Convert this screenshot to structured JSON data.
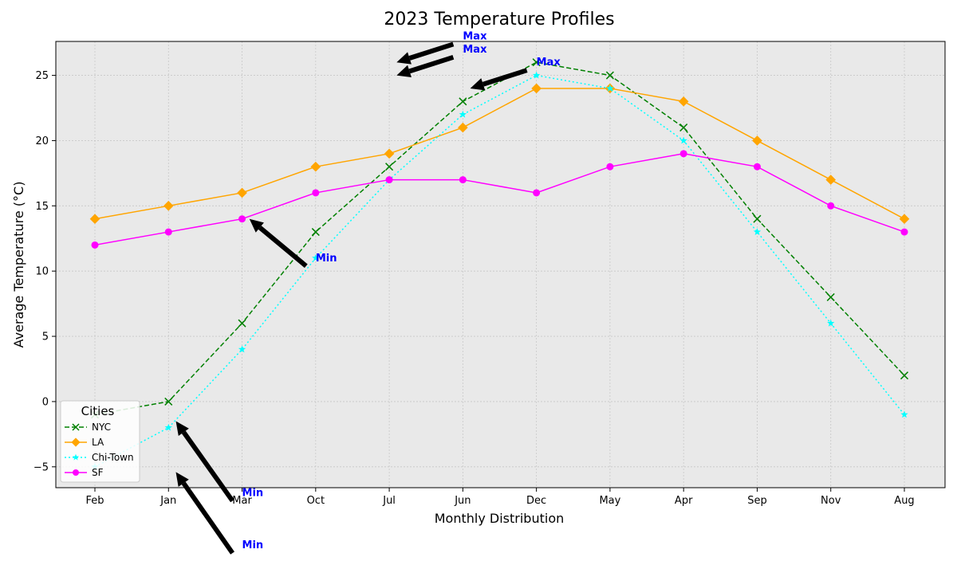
{
  "chart_data": {
    "type": "line",
    "title": "2023 Temperature Profiles",
    "xlabel": "Monthly Distribution",
    "ylabel": "Average Temperature (°C)",
    "categories": [
      "Feb",
      "Jan",
      "Mar",
      "Oct",
      "Jul",
      "Jun",
      "Dec",
      "May",
      "Apr",
      "Sep",
      "Nov",
      "Aug"
    ],
    "ylim": [
      -6.6,
      27.6
    ],
    "yticks": [
      -5,
      0,
      5,
      10,
      15,
      20,
      25
    ],
    "grid": true,
    "background": "#e9e9e9",
    "legend": {
      "title": "Cities",
      "placement": "lower-left"
    },
    "series": [
      {
        "name": "NYC",
        "color": "#008000",
        "marker": "x",
        "line_style": "dashed",
        "values": [
          -1,
          0,
          6,
          13,
          18,
          23,
          26,
          25,
          21,
          14,
          8,
          2
        ]
      },
      {
        "name": "LA",
        "color": "#ffa500",
        "marker": "diamond",
        "line_style": "solid",
        "values": [
          14,
          15,
          16,
          18,
          19,
          21,
          24,
          24,
          23,
          20,
          17,
          14
        ]
      },
      {
        "name": "Chi-Town",
        "color": "#00ffff",
        "marker": "star",
        "line_style": "dotted",
        "values": [
          -5,
          -2,
          4,
          11,
          17,
          22,
          25,
          24,
          20,
          13,
          6,
          -1
        ]
      },
      {
        "name": "SF",
        "color": "#ff00ff",
        "marker": "circle",
        "line_style": "solid",
        "values": [
          12,
          13,
          14,
          16,
          17,
          17,
          16,
          18,
          19,
          18,
          15,
          13
        ]
      }
    ],
    "annotations": [
      {
        "text": "Max",
        "text_x": 5,
        "text_y": 28.0,
        "target_x": 4.1,
        "target_y": 26.0
      },
      {
        "text": "Max",
        "text_x": 5,
        "text_y": 27.0,
        "target_x": 4.1,
        "target_y": 25.0
      },
      {
        "text": "Max",
        "text_x": 6,
        "text_y": 26.0,
        "target_x": 5.1,
        "target_y": 24.0
      },
      {
        "text": "Min",
        "text_x": 3,
        "text_y": 11.0,
        "target_x": 2.1,
        "target_y": 14.0
      },
      {
        "text": "Min",
        "text_x": 2,
        "text_y": -7.0,
        "target_x": 1.1,
        "target_y": -1.5
      },
      {
        "text": "Min",
        "text_x": 2,
        "text_y": -11.0,
        "target_x": 1.1,
        "target_y": -5.4
      }
    ],
    "annotation_color": "#0000ff"
  }
}
